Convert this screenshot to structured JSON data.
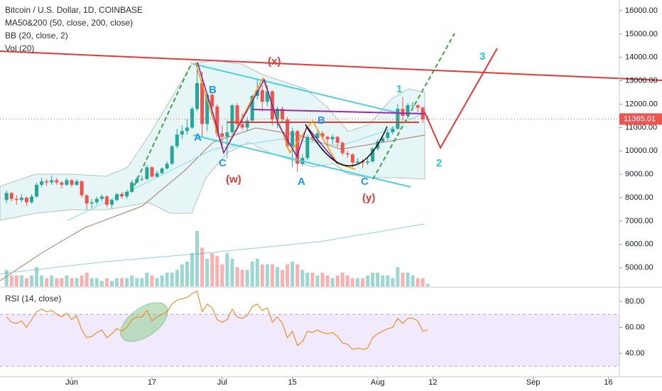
{
  "chart_data": [
    {
      "type": "candlestick",
      "title": "Bitcoin / U.S. Dollar, 1D, COINBASE",
      "indicators": [
        "MA50&200 (50, close, 200, close)",
        "BB (20, close, 2)",
        "Vol (20)"
      ],
      "up_color": "#26a69a",
      "down_color": "#ef5350",
      "xlim": [
        -14.3,
        109.2
      ],
      "ylim": [
        4200,
        16456
      ],
      "yticks": [
        {
          "value": 16000,
          "label": "16000.00"
        },
        {
          "value": 15000,
          "label": "15000.00"
        },
        {
          "value": 14000,
          "label": "14000.00"
        },
        {
          "value": 13000,
          "label": "13000.00"
        },
        {
          "value": 12000,
          "label": "12000.00"
        },
        {
          "value": 11000,
          "label": "11000.00"
        },
        {
          "value": 10000,
          "label": "10000.00"
        },
        {
          "value": 9000,
          "label": "9000.00"
        },
        {
          "value": 8000,
          "label": "8000.00"
        },
        {
          "value": 7000,
          "label": "7000.00"
        },
        {
          "value": 6000,
          "label": "6000.00"
        },
        {
          "value": 5000,
          "label": "5000.00"
        }
      ],
      "last_price": {
        "value": 11365.01,
        "label": "11365.01"
      },
      "x": [
        -13,
        -12,
        -11,
        -10,
        -9,
        -8,
        -7,
        -6,
        -5,
        -4,
        -3,
        -2,
        -1,
        0,
        1,
        2,
        3,
        4,
        5,
        6,
        7,
        8,
        9,
        10,
        11,
        12,
        13,
        14,
        15,
        16,
        17,
        18,
        19,
        20,
        21,
        22,
        23,
        24,
        25,
        26,
        27,
        28,
        29,
        30,
        31,
        32,
        33,
        34,
        35,
        36,
        37,
        38,
        39,
        40,
        41,
        42,
        43,
        44,
        45,
        46,
        47,
        48,
        49,
        50,
        51,
        52,
        53,
        54,
        55,
        56,
        57,
        58,
        59,
        60,
        61,
        62,
        63,
        64,
        65,
        66,
        67,
        68,
        69,
        70,
        71
      ],
      "open": [
        7900,
        8200,
        7950,
        7900,
        8000,
        7800,
        8050,
        8550,
        8700,
        8650,
        8750,
        8650,
        8550,
        8750,
        8550,
        8700,
        8100,
        7750,
        7800,
        7950,
        8050,
        7700,
        7900,
        8150,
        8050,
        8250,
        8650,
        8800,
        8800,
        9300,
        8900,
        9050,
        9250,
        9450,
        10200,
        10700,
        10850,
        11000,
        11800,
        12900,
        11150,
        12400,
        11900,
        10750,
        10600,
        10800,
        11950,
        11150,
        11000,
        11300,
        12350,
        12600,
        12100,
        12550,
        11350,
        11800,
        11350,
        10200,
        10850,
        9450,
        9700,
        10600,
        10550,
        10750,
        10600,
        10500,
        10600,
        10350,
        9900,
        9850,
        9500,
        9550,
        9500,
        9550,
        10100,
        10400,
        10550,
        10800,
        10950,
        11800,
        11500,
        11950,
        11950,
        11850,
        11350
      ],
      "high": [
        8300,
        8250,
        8100,
        8150,
        8050,
        8150,
        8650,
        8850,
        8800,
        8950,
        8850,
        8700,
        8850,
        8800,
        8800,
        8750,
        8150,
        7950,
        8050,
        8150,
        8100,
        7950,
        8200,
        8250,
        8350,
        8750,
        8900,
        8950,
        9400,
        9350,
        9150,
        9300,
        9550,
        10250,
        10950,
        11100,
        11350,
        11900,
        13800,
        13400,
        12450,
        12450,
        12000,
        11100,
        11300,
        12000,
        12050,
        11600,
        11450,
        12400,
        13100,
        12800,
        12800,
        12600,
        11900,
        11900,
        11450,
        11000,
        10900,
        9850,
        10700,
        10750,
        10900,
        10850,
        10650,
        10700,
        10650,
        10400,
        10000,
        9900,
        9700,
        9650,
        9700,
        10150,
        10500,
        10650,
        10900,
        11050,
        12000,
        12300,
        12050,
        12100,
        12000,
        11900,
        11500
      ],
      "low": [
        7750,
        7850,
        7700,
        7800,
        7650,
        7750,
        8000,
        8450,
        8500,
        8550,
        8550,
        8400,
        8500,
        8450,
        8500,
        8000,
        7500,
        7550,
        7700,
        7850,
        7600,
        7550,
        7850,
        7950,
        7950,
        8200,
        8600,
        8700,
        8750,
        8850,
        8850,
        9000,
        9200,
        9400,
        10100,
        10500,
        10700,
        10950,
        11700,
        10600,
        10850,
        11400,
        10600,
        10100,
        9700,
        10700,
        11000,
        10900,
        10850,
        11200,
        12200,
        11700,
        11900,
        11100,
        11000,
        11200,
        10100,
        9300,
        9100,
        9350,
        9600,
        10400,
        10450,
        10500,
        10250,
        10300,
        10150,
        9800,
        9700,
        9300,
        9450,
        9250,
        9400,
        9500,
        10000,
        10350,
        10450,
        10700,
        10900,
        11300,
        11400,
        11800,
        11650,
        11200,
        11250
      ],
      "close": [
        8200,
        7950,
        7900,
        8000,
        7800,
        8050,
        8550,
        8700,
        8650,
        8750,
        8650,
        8550,
        8750,
        8550,
        8700,
        8100,
        7750,
        7800,
        7950,
        8050,
        7700,
        7900,
        8150,
        8050,
        8250,
        8650,
        8800,
        8800,
        9300,
        8900,
        9050,
        9250,
        9450,
        10200,
        10700,
        10850,
        11000,
        11800,
        12900,
        11150,
        12400,
        11900,
        10750,
        10600,
        10800,
        11950,
        11150,
        11000,
        11300,
        12350,
        12600,
        12100,
        12550,
        11350,
        11800,
        11350,
        10200,
        10850,
        9450,
        9700,
        10600,
        10550,
        10750,
        10600,
        10500,
        10600,
        10350,
        9900,
        9850,
        9500,
        9550,
        9500,
        9550,
        10100,
        10400,
        10550,
        10800,
        10950,
        11800,
        11500,
        11950,
        11950,
        11850,
        11350,
        11365.01
      ],
      "volume": [
        3,
        2,
        2,
        2,
        1.5,
        2,
        3.5,
        2,
        1.5,
        2,
        1.5,
        1.5,
        2,
        1.5,
        1.5,
        2,
        2.5,
        1.5,
        1.5,
        1,
        1.5,
        1,
        1.5,
        1.5,
        1.5,
        2,
        1.5,
        1.5,
        2.5,
        2,
        1.5,
        2,
        2.5,
        2.5,
        3,
        4,
        4.5,
        6,
        10,
        7,
        5,
        6,
        5.5,
        4,
        6,
        5,
        3.5,
        3,
        3,
        4.5,
        5,
        4,
        4,
        4,
        3.5,
        3,
        4,
        4.5,
        4,
        3,
        2.5,
        2.5,
        2,
        2.5,
        2,
        1.5,
        2,
        2.5,
        2,
        1.5,
        1.5,
        1.5,
        2,
        2.5,
        2.5,
        2,
        2,
        1.5,
        3.5,
        2.5,
        2.5,
        2,
        1.5,
        1.5,
        0.5
      ],
      "annotations": [
        "(x)",
        "B",
        "A",
        "C",
        "(w)",
        "B",
        "A",
        "C",
        "(y)",
        "1",
        "2",
        "3"
      ]
    },
    {
      "type": "line",
      "title": "RSI (14, close)",
      "color": "#f57c00",
      "band": [
        30,
        70
      ],
      "xlim": [
        -14.3,
        109.2
      ],
      "ylim": [
        21.9,
        90.4
      ],
      "yticks": [
        {
          "value": 80,
          "label": "80.00"
        },
        {
          "value": 60,
          "label": "60.00"
        },
        {
          "value": 40,
          "label": "40.00"
        }
      ],
      "xticks": [
        {
          "value": 0,
          "label": "Jun"
        },
        {
          "value": 16,
          "label": "17"
        },
        {
          "value": 30,
          "label": "Jul"
        },
        {
          "value": 44,
          "label": "15"
        },
        {
          "value": 61,
          "label": "Aug"
        },
        {
          "value": 72,
          "label": "12"
        },
        {
          "value": 92,
          "label": "Sep"
        },
        {
          "value": 107,
          "label": "16"
        }
      ],
      "x": [
        -13,
        -12,
        -11,
        -10,
        -9,
        -8,
        -7,
        -6,
        -5,
        -4,
        -3,
        -2,
        -1,
        0,
        1,
        2,
        3,
        4,
        5,
        6,
        7,
        8,
        9,
        10,
        11,
        12,
        13,
        14,
        15,
        16,
        17,
        18,
        19,
        20,
        21,
        22,
        23,
        24,
        25,
        26,
        27,
        28,
        29,
        30,
        31,
        32,
        33,
        34,
        35,
        36,
        37,
        38,
        39,
        40,
        41,
        42,
        43,
        44,
        45,
        46,
        47,
        48,
        49,
        50,
        51,
        52,
        53,
        54,
        55,
        56,
        57,
        58,
        59,
        60,
        61,
        62,
        63,
        64,
        65,
        66,
        67,
        68,
        69,
        70,
        71
      ],
      "values": [
        68,
        64,
        63,
        65,
        60,
        66,
        72,
        74,
        72,
        73,
        70,
        68,
        71,
        66,
        69,
        58,
        52,
        53,
        56,
        58,
        52,
        55,
        59,
        57,
        60,
        66,
        68,
        68,
        73,
        65,
        68,
        70,
        72,
        78,
        81,
        82,
        83,
        86,
        88,
        72,
        78,
        75,
        66,
        64,
        66,
        74,
        68,
        67,
        69,
        76,
        78,
        73,
        75,
        64,
        68,
        63,
        52,
        57,
        46,
        49,
        57,
        56,
        58,
        56,
        55,
        56,
        53,
        48,
        47,
        43,
        44,
        43,
        44,
        52,
        55,
        57,
        59,
        60,
        67,
        63,
        67,
        67,
        65,
        57,
        58
      ]
    }
  ]
}
